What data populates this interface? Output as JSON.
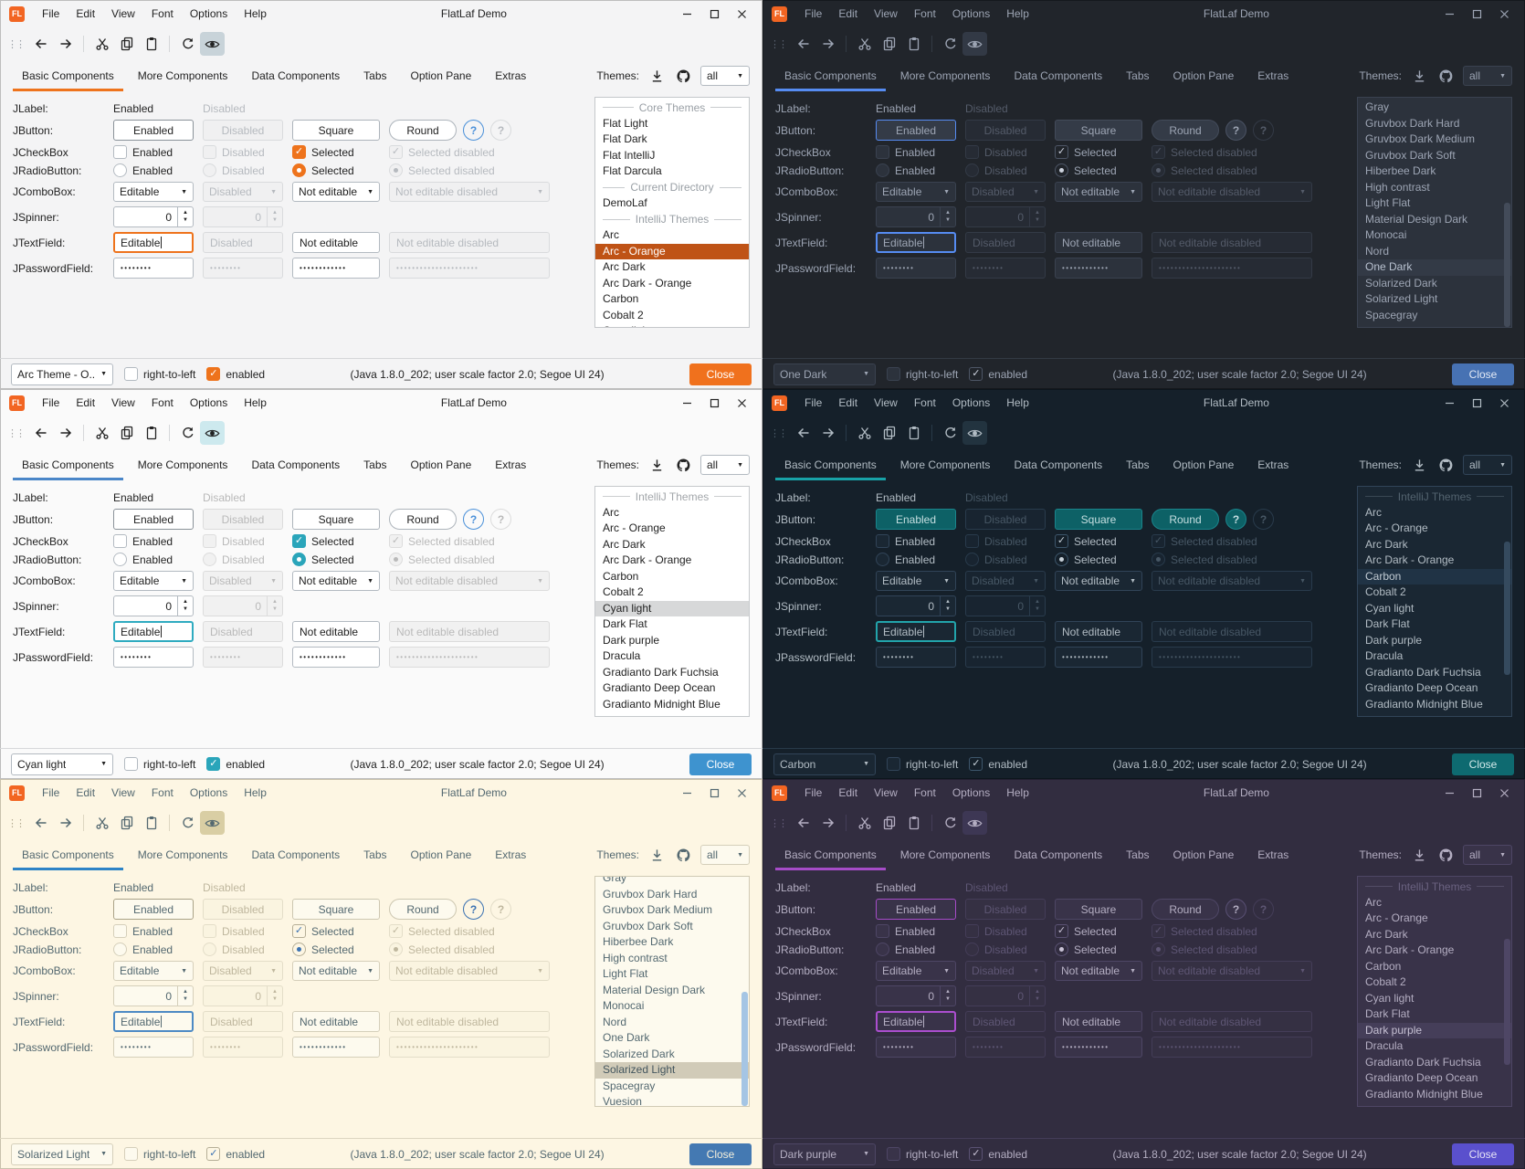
{
  "shared": {
    "window": {
      "logo": "FL",
      "logo_bg": "#f26522",
      "title": "FlatLaf Demo",
      "menus": [
        "File",
        "Edit",
        "View",
        "Font",
        "Options",
        "Help"
      ]
    },
    "icons": {
      "grip": "⋮⋮",
      "combo_arrow": "▼",
      "spin_up": "▲",
      "spin_down": "▼",
      "check": "✓"
    },
    "tabs": [
      {
        "label": "Basic Components",
        "active": true
      },
      {
        "label": "More Components",
        "active": false
      },
      {
        "label": "Data Components",
        "active": false
      },
      {
        "label": "Tabs",
        "active": false
      },
      {
        "label": "Option Pane",
        "active": false
      },
      {
        "label": "Extras",
        "active": false
      }
    ],
    "themes_header": {
      "label": "Themes:",
      "filter_value": "all"
    },
    "component_rows": [
      {
        "kind": "label",
        "label": "JLabel:",
        "cells": [
          {
            "text": "Enabled"
          },
          {
            "text": "Disabled",
            "disabled": true
          }
        ]
      },
      {
        "kind": "button",
        "label": "JButton:",
        "cells": [
          {
            "text": "Enabled",
            "focus": true
          },
          {
            "text": "Disabled",
            "disabled": true
          },
          {
            "text": "Square"
          },
          {
            "text": "Round",
            "round": true
          },
          {
            "text": "?",
            "help": true
          },
          {
            "text": "?",
            "help": true,
            "disabled": true
          }
        ]
      },
      {
        "kind": "checkbox",
        "label": "JCheckBox",
        "cells": [
          {
            "text": "Enabled"
          },
          {
            "text": "Disabled",
            "disabled": true
          },
          {
            "text": "Selected",
            "checked": true
          },
          {
            "text": "Selected disabled",
            "checked": true,
            "disabled": true
          }
        ]
      },
      {
        "kind": "radio",
        "label": "JRadioButton:",
        "cells": [
          {
            "text": "Enabled"
          },
          {
            "text": "Disabled",
            "disabled": true
          },
          {
            "text": "Selected",
            "checked": true
          },
          {
            "text": "Selected disabled",
            "checked": true,
            "disabled": true
          }
        ]
      },
      {
        "kind": "combo",
        "label": "JComboBox:",
        "cells": [
          {
            "text": "Editable"
          },
          {
            "text": "Disabled",
            "disabled": true
          },
          {
            "text": "Not editable"
          },
          {
            "text": "Not editable disabled",
            "disabled": true
          }
        ]
      },
      {
        "kind": "spinner",
        "label": "JSpinner:",
        "cells": [
          {
            "text": "0"
          },
          {
            "text": "0",
            "disabled": true
          }
        ]
      },
      {
        "kind": "textfield",
        "label": "JTextField:",
        "cells": [
          {
            "text": "Editable",
            "focus": true
          },
          {
            "text": "Disabled",
            "disabled": true
          },
          {
            "text": "Not editable"
          },
          {
            "text": "Not editable disabled",
            "disabled": true
          }
        ]
      },
      {
        "kind": "password",
        "label": "JPasswordField:",
        "cells": [
          {
            "text": "••••••••"
          },
          {
            "text": "••••••••",
            "disabled": true
          },
          {
            "text": "••••••••••••"
          },
          {
            "text": "•••••••••••••••••••••",
            "disabled": true
          }
        ]
      }
    ],
    "bottom_bar": {
      "rtl_label": "right-to-left",
      "rtl_checked": false,
      "enabled_label": "enabled",
      "enabled_checked": true,
      "status": "(Java 1.8.0_202;  user scale factor 2.0; Segoe UI 24)",
      "close_label": "Close"
    }
  },
  "panels": [
    {
      "name": "arc-orange-light",
      "combo_value": "Arc Theme - O...",
      "theme_list": [
        {
          "type": "header",
          "label": "Core Themes"
        },
        {
          "type": "item",
          "label": "Flat Light"
        },
        {
          "type": "item",
          "label": "Flat Dark"
        },
        {
          "type": "item",
          "label": "Flat IntelliJ"
        },
        {
          "type": "item",
          "label": "Flat Darcula"
        },
        {
          "type": "header",
          "label": "Current Directory"
        },
        {
          "type": "item",
          "label": "DemoLaf"
        },
        {
          "type": "header",
          "label": "IntelliJ Themes"
        },
        {
          "type": "item",
          "label": "Arc"
        },
        {
          "type": "item",
          "label": "Arc - Orange",
          "selected": true
        },
        {
          "type": "item",
          "label": "Arc Dark"
        },
        {
          "type": "item",
          "label": "Arc Dark - Orange"
        },
        {
          "type": "item",
          "label": "Carbon"
        },
        {
          "type": "item",
          "label": "Cobalt 2"
        },
        {
          "type": "item",
          "label": "Cyan light"
        }
      ],
      "scrollbar": null,
      "colors": {
        "win_border": "#bdbdbd",
        "bg": "#f4f4f5",
        "fg": "#222222",
        "dim": "#9aa0a6",
        "field_bg": "#ffffff",
        "field_border": "#b3bac1",
        "disabled_bg": "#f0f0f1",
        "disabled_border": "#d9dbdd",
        "disabled_fg": "#b6babf",
        "btn_bg": "#ffffff",
        "btn_border": "#adb4bb",
        "btn_focus": "#8a9299",
        "btn_fill": "",
        "btn_fill_border": "",
        "btn_fill_fg": "",
        "accent": "#ee731c",
        "focus": "#ee731c",
        "check_fill": "#ee731c",
        "check_border": "#ee731c",
        "check_mark": "#ffffff",
        "radio_dot": "#ffffff",
        "help_bg": "transparent",
        "help_border": "#4a90d9",
        "help_fg": "#4a90d9",
        "sel_bg": "#bf5316",
        "sel_fg": "#ffffff",
        "close_bg": "#f0711d",
        "close_fg": "#ffffff",
        "toggle_bg": "#c8d3d9",
        "list_border": "#c4c7ca",
        "separator": "#d5d7d9",
        "scroll_thumb": "transparent",
        "header_fg": "#9aa0a6"
      }
    },
    {
      "name": "one-dark",
      "combo_value": "One Dark",
      "theme_list": [
        {
          "type": "item",
          "label": "Gray"
        },
        {
          "type": "item",
          "label": "Gruvbox Dark Hard"
        },
        {
          "type": "item",
          "label": "Gruvbox Dark Medium"
        },
        {
          "type": "item",
          "label": "Gruvbox Dark Soft"
        },
        {
          "type": "item",
          "label": "Hiberbee Dark"
        },
        {
          "type": "item",
          "label": "High contrast"
        },
        {
          "type": "item",
          "label": "Light Flat"
        },
        {
          "type": "item",
          "label": "Material Design Dark"
        },
        {
          "type": "item",
          "label": "Monocai"
        },
        {
          "type": "item",
          "label": "Nord"
        },
        {
          "type": "item",
          "label": "One Dark",
          "selected": true
        },
        {
          "type": "item",
          "label": "Solarized Dark"
        },
        {
          "type": "item",
          "label": "Solarized Light"
        },
        {
          "type": "item",
          "label": "Spacegray"
        }
      ],
      "scrollbar": {
        "top_pct": 46,
        "height_pct": 54
      },
      "colors": {
        "win_border": "#15181d",
        "bg": "#21252b",
        "fg": "#9da5b4",
        "dim": "#5a6270",
        "field_bg": "#2c323c",
        "field_border": "#3a4250",
        "disabled_bg": "#262b34",
        "disabled_border": "#333a46",
        "disabled_fg": "#545b69",
        "btn_bg": "#343b47",
        "btn_border": "#434b5a",
        "btn_focus": "#568cf2",
        "btn_fill": "",
        "btn_fill_border": "",
        "btn_fill_fg": "",
        "accent": "#568cf2",
        "focus": "#568cf2",
        "check_fill": "transparent",
        "check_border": "#4d5666",
        "check_mark": "#cdd3de",
        "radio_dot": "#cdd3de",
        "help_bg": "#323945",
        "help_border": "#4a5263",
        "help_fg": "#9da5b4",
        "sel_bg": "#333a46",
        "sel_fg": "#b9c2d0",
        "close_bg": "#4772b3",
        "close_fg": "#e2e9f5",
        "toggle_bg": "#323945",
        "list_border": "#3a4250",
        "separator": "#333a44",
        "scroll_thumb": "#434b59",
        "header_fg": "#5a6270"
      }
    },
    {
      "name": "cyan-light",
      "combo_value": "Cyan light",
      "theme_list": [
        {
          "type": "header",
          "label": "IntelliJ Themes"
        },
        {
          "type": "item",
          "label": "Arc"
        },
        {
          "type": "item",
          "label": "Arc - Orange"
        },
        {
          "type": "item",
          "label": "Arc Dark"
        },
        {
          "type": "item",
          "label": "Arc Dark - Orange"
        },
        {
          "type": "item",
          "label": "Carbon"
        },
        {
          "type": "item",
          "label": "Cobalt 2"
        },
        {
          "type": "item",
          "label": "Cyan light",
          "selected": true
        },
        {
          "type": "item",
          "label": "Dark Flat"
        },
        {
          "type": "item",
          "label": "Dark purple"
        },
        {
          "type": "item",
          "label": "Dracula"
        },
        {
          "type": "item",
          "label": "Gradianto Dark Fuchsia"
        },
        {
          "type": "item",
          "label": "Gradianto Deep Ocean"
        },
        {
          "type": "item",
          "label": "Gradianto Midnight Blue"
        }
      ],
      "scrollbar": null,
      "colors": {
        "win_border": "#bdbdbd",
        "bg": "#fafafa",
        "fg": "#222222",
        "dim": "#a6a6a6",
        "field_bg": "#ffffff",
        "field_border": "#b3bac1",
        "disabled_bg": "#f1f1f1",
        "disabled_border": "#dcdcdc",
        "disabled_fg": "#b9b9b9",
        "btn_bg": "#ffffff",
        "btn_border": "#adb4bb",
        "btn_focus": "#8a9299",
        "btn_fill": "",
        "btn_fill_border": "",
        "btn_fill_fg": "",
        "accent": "#4a86c8",
        "focus": "#2fabc0",
        "check_fill": "#2aa5ba",
        "check_border": "#2aa5ba",
        "check_mark": "#ffffff",
        "radio_dot": "#ffffff",
        "help_bg": "transparent",
        "help_border": "#4a90d9",
        "help_fg": "#4a90d9",
        "sel_bg": "#d7d8d9",
        "sel_fg": "#222222",
        "close_bg": "#3e93cf",
        "close_fg": "#ffffff",
        "toggle_bg": "#cde9ee",
        "list_border": "#c6c9cc",
        "separator": "#d6d8da",
        "scroll_thumb": "transparent",
        "header_fg": "#a2a6aa"
      }
    },
    {
      "name": "carbon",
      "combo_value": "Carbon",
      "theme_list": [
        {
          "type": "header",
          "label": "IntelliJ Themes"
        },
        {
          "type": "item",
          "label": "Arc"
        },
        {
          "type": "item",
          "label": "Arc - Orange"
        },
        {
          "type": "item",
          "label": "Arc Dark"
        },
        {
          "type": "item",
          "label": "Arc Dark - Orange"
        },
        {
          "type": "item",
          "label": "Carbon",
          "selected": true
        },
        {
          "type": "item",
          "label": "Cobalt 2"
        },
        {
          "type": "item",
          "label": "Cyan light"
        },
        {
          "type": "item",
          "label": "Dark Flat"
        },
        {
          "type": "item",
          "label": "Dark purple"
        },
        {
          "type": "item",
          "label": "Dracula"
        },
        {
          "type": "item",
          "label": "Gradianto Dark Fuchsia"
        },
        {
          "type": "item",
          "label": "Gradianto Deep Ocean"
        },
        {
          "type": "item",
          "label": "Gradianto Midnight Blue"
        }
      ],
      "scrollbar": {
        "top_pct": 24,
        "height_pct": 58
      },
      "colors": {
        "win_border": "#0d151c",
        "bg": "#15202a",
        "fg": "#b2bcc4",
        "dim": "#4d5d69",
        "field_bg": "#1a2733",
        "field_border": "#314458",
        "disabled_bg": "#182430",
        "disabled_border": "#293b4c",
        "disabled_fg": "#475765",
        "btn_bg": "#1a2733",
        "btn_border": "#314458",
        "btn_focus": "#2a9ba2",
        "btn_fill": "#0d6166",
        "btn_fill_border": "#1a858c",
        "btn_fill_fg": "#c6dfe1",
        "accent": "#18a2a7",
        "focus": "#22a4ab",
        "check_fill": "transparent",
        "check_border": "#3d566b",
        "check_mark": "#c6d0d8",
        "radio_dot": "#c6d0d8",
        "help_bg": "#0d6166",
        "help_border": "#1a858c",
        "help_fg": "#c6dfe1",
        "sel_bg": "#203345",
        "sel_fg": "#c2ccd4",
        "close_bg": "#0e6a70",
        "close_fg": "#d2e9ea",
        "toggle_bg": "#22333f",
        "list_border": "#314458",
        "separator": "#283a49",
        "scroll_thumb": "#354a5e",
        "header_fg": "#53636f"
      }
    },
    {
      "name": "solarized-light",
      "combo_value": "Solarized Light",
      "theme_list": [
        {
          "type": "item",
          "label": "Gray",
          "clipped": true
        },
        {
          "type": "item",
          "label": "Gruvbox Dark Hard"
        },
        {
          "type": "item",
          "label": "Gruvbox Dark Medium"
        },
        {
          "type": "item",
          "label": "Gruvbox Dark Soft"
        },
        {
          "type": "item",
          "label": "Hiberbee Dark"
        },
        {
          "type": "item",
          "label": "High contrast"
        },
        {
          "type": "item",
          "label": "Light Flat"
        },
        {
          "type": "item",
          "label": "Material Design Dark"
        },
        {
          "type": "item",
          "label": "Monocai"
        },
        {
          "type": "item",
          "label": "Nord"
        },
        {
          "type": "item",
          "label": "One Dark"
        },
        {
          "type": "item",
          "label": "Solarized Dark"
        },
        {
          "type": "item",
          "label": "Solarized Light",
          "selected": true
        },
        {
          "type": "item",
          "label": "Spacegray"
        },
        {
          "type": "item",
          "label": "Vuesion"
        }
      ],
      "scrollbar": {
        "top_pct": 50,
        "height_pct": 50
      },
      "colors": {
        "win_border": "#c9c2ac",
        "bg": "#fdf6e3",
        "fg": "#536870",
        "dim": "#b1a98f",
        "field_bg": "#fdfaee",
        "field_border": "#d5cfba",
        "disabled_bg": "#faf4e0",
        "disabled_border": "#e3ddc8",
        "disabled_fg": "#bfb79e",
        "btn_bg": "#fdfaee",
        "btn_border": "#cdc7b1",
        "btn_focus": "#aaa287",
        "btn_fill": "",
        "btn_fill_border": "",
        "btn_fill_fg": "",
        "accent": "#2d83c6",
        "focus": "#4d8ac4",
        "check_fill": "transparent",
        "check_border": "#b5ae96",
        "check_mark": "#3b72b2",
        "radio_dot": "#3b72b2",
        "help_bg": "transparent",
        "help_border": "#3b72b2",
        "help_fg": "#3b72b2",
        "sel_bg": "#d1cbb8",
        "sel_fg": "#44565e",
        "close_bg": "#4479b2",
        "close_fg": "#f3eedb",
        "toggle_bg": "#d9cea4",
        "list_border": "#d0cab5",
        "separator": "#ddd6c1",
        "scroll_thumb": "#a5c5e4",
        "header_fg": "#b1a98f"
      }
    },
    {
      "name": "dark-purple",
      "combo_value": "Dark purple",
      "theme_list": [
        {
          "type": "header",
          "label": "IntelliJ Themes"
        },
        {
          "type": "item",
          "label": "Arc"
        },
        {
          "type": "item",
          "label": "Arc - Orange"
        },
        {
          "type": "item",
          "label": "Arc Dark"
        },
        {
          "type": "item",
          "label": "Arc Dark - Orange"
        },
        {
          "type": "item",
          "label": "Carbon"
        },
        {
          "type": "item",
          "label": "Cobalt 2"
        },
        {
          "type": "item",
          "label": "Cyan light"
        },
        {
          "type": "item",
          "label": "Dark Flat"
        },
        {
          "type": "item",
          "label": "Dark purple",
          "selected": true
        },
        {
          "type": "item",
          "label": "Dracula"
        },
        {
          "type": "item",
          "label": "Gradianto Dark Fuchsia"
        },
        {
          "type": "item",
          "label": "Gradianto Deep Ocean"
        },
        {
          "type": "item",
          "label": "Gradianto Midnight Blue"
        }
      ],
      "scrollbar": {
        "top_pct": 27,
        "height_pct": 55
      },
      "colors": {
        "win_border": "#232031",
        "bg": "#322d40",
        "fg": "#b4aec2",
        "dim": "#665e7c",
        "field_bg": "#393349",
        "field_border": "#4e4665",
        "disabled_bg": "#353043",
        "disabled_border": "#443d58",
        "disabled_fg": "#5e5674",
        "btn_bg": "#393349",
        "btn_border": "#4e4665",
        "btn_focus": "#a64cc8",
        "btn_fill": "",
        "btn_fill_border": "",
        "btn_fill_fg": "",
        "accent": "#a64cc8",
        "focus": "#ab4ecf",
        "check_fill": "transparent",
        "check_border": "#5a5273",
        "check_mark": "#c9c3d6",
        "radio_dot": "#c9c3d6",
        "help_bg": "#393349",
        "help_border": "#584f73",
        "help_fg": "#b4aec2",
        "sel_bg": "#453e59",
        "sel_fg": "#c6c0d3",
        "close_bg": "#5a50cd",
        "close_fg": "#e6e3f6",
        "toggle_bg": "#3d3754",
        "list_border": "#4e4665",
        "separator": "#443d58",
        "scroll_thumb": "#4e4665",
        "header_fg": "#6a6280"
      }
    }
  ]
}
